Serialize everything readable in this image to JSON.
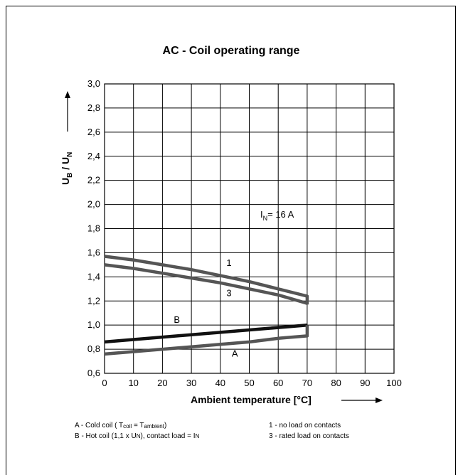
{
  "chart_data": {
    "type": "line",
    "title": "AC - Coil operating range",
    "xlabel": "Ambient temperature [°C]",
    "ylabel_main": "U",
    "ylabel_main_sub": "B",
    "ylabel_sep": " / U",
    "ylabel_sep_sub": "N",
    "xlim": [
      0,
      100
    ],
    "ylim": [
      0.6,
      3.0
    ],
    "x_ticks": [
      0,
      10,
      20,
      30,
      40,
      50,
      60,
      70,
      80,
      90,
      100
    ],
    "x_tick_labels": [
      "0",
      "10",
      "20",
      "30",
      "40",
      "50",
      "60",
      "70",
      "80",
      "90",
      "100"
    ],
    "y_ticks": [
      0.6,
      0.8,
      1.0,
      1.2,
      1.4,
      1.6,
      1.8,
      2.0,
      2.2,
      2.4,
      2.6,
      2.8,
      3.0
    ],
    "y_tick_labels": [
      "0,6",
      "0,8",
      "1,0",
      "1,2",
      "1,4",
      "1,6",
      "1,8",
      "2,0",
      "2,2",
      "2,4",
      "2,6",
      "2,8",
      "3,0"
    ],
    "grid": true,
    "annotation_in": "I",
    "annotation_in_sub": "N",
    "annotation_in_rest": "= 16 A",
    "series": [
      {
        "name": "1",
        "color": "#555555",
        "x": [
          0,
          10,
          20,
          30,
          40,
          50,
          60,
          70,
          70
        ],
        "y": [
          1.57,
          1.54,
          1.5,
          1.46,
          1.41,
          1.36,
          1.3,
          1.24,
          1.17
        ]
      },
      {
        "name": "3",
        "color": "#555555",
        "x": [
          0,
          10,
          20,
          30,
          40,
          50,
          60,
          70
        ],
        "y": [
          1.5,
          1.47,
          1.43,
          1.39,
          1.35,
          1.3,
          1.25,
          1.18
        ]
      },
      {
        "name": "B",
        "color": "#111111",
        "x": [
          0,
          70
        ],
        "y": [
          0.86,
          1.0
        ]
      },
      {
        "name": "A",
        "color": "#555555",
        "x": [
          0,
          10,
          20,
          30,
          40,
          50,
          60,
          70,
          70
        ],
        "y": [
          0.76,
          0.78,
          0.8,
          0.82,
          0.84,
          0.86,
          0.89,
          0.91,
          1.0
        ]
      }
    ],
    "curve_labels": [
      {
        "text": "1",
        "x": 43,
        "y": 1.49
      },
      {
        "text": "3",
        "x": 43,
        "y": 1.24
      },
      {
        "text": "B",
        "x": 25,
        "y": 1.02
      },
      {
        "text": "A",
        "x": 45,
        "y": 0.74
      }
    ]
  },
  "legend": {
    "a_line_prefix": "A - Cold coil ( T",
    "a_sub1": "coil",
    "a_mid": " = T",
    "a_sub2": "ambient",
    "a_suffix": ")",
    "b_line_prefix": "B - Hot coil (1,1 x U",
    "b_sub1": "N",
    "b_mid": "), contact load = I",
    "b_sub2": "N",
    "item1": "1 - no load on contacts",
    "item3": "3 - rated load on contacts"
  }
}
